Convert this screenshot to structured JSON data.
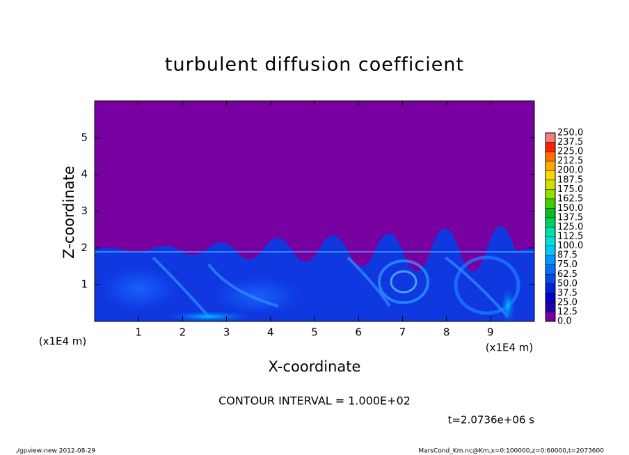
{
  "chart_data": {
    "type": "contour",
    "title": "turbulent diffusion coefficient",
    "x_label": "X-coordinate",
    "y_label": "Z-coordinate",
    "x_unit": "(x1E4 m)",
    "y_unit": "(x1E4 m)",
    "xlim": [
      0,
      10
    ],
    "ylim": [
      0,
      6
    ],
    "xticks": [
      1,
      2,
      3,
      4,
      5,
      6,
      7,
      8,
      9
    ],
    "yticks": [
      1,
      2,
      3,
      4,
      5
    ],
    "contour_interval": "CONTOUR INTERVAL = 1.000E+02",
    "time": "t=2.0736e+06 s",
    "colorbar": {
      "ticks": [
        {
          "value": 0,
          "label": "0.0"
        },
        {
          "value": 12.5,
          "label": "12.5"
        },
        {
          "value": 25,
          "label": "25.0"
        },
        {
          "value": 37.5,
          "label": "37.5"
        },
        {
          "value": 50,
          "label": "50.0"
        },
        {
          "value": 62.5,
          "label": "62.5"
        },
        {
          "value": 75,
          "label": "75.0"
        },
        {
          "value": 87.5,
          "label": "87.5"
        },
        {
          "value": 100,
          "label": "100.0"
        },
        {
          "value": 112.5,
          "label": "112.5"
        },
        {
          "value": 125,
          "label": "125.0"
        },
        {
          "value": 137.5,
          "label": "137.5"
        },
        {
          "value": 150,
          "label": "150.0"
        },
        {
          "value": 162.5,
          "label": "162.5"
        },
        {
          "value": 175,
          "label": "175.0"
        },
        {
          "value": 187.5,
          "label": "187.5"
        },
        {
          "value": 200,
          "label": "200.0"
        },
        {
          "value": 212.5,
          "label": "212.5"
        },
        {
          "value": 225,
          "label": "225.0"
        },
        {
          "value": 237.5,
          "label": "237.5"
        },
        {
          "value": 250,
          "label": "250.0"
        }
      ],
      "colors": [
        "#7800a0",
        "#2000b0",
        "#0000c8",
        "#0020e0",
        "#0048f0",
        "#0070ff",
        "#0098ff",
        "#00c8ff",
        "#00e0d8",
        "#00e0a0",
        "#00d060",
        "#00c020",
        "#40d000",
        "#90e000",
        "#d0e000",
        "#f8d800",
        "#ffa800",
        "#ff7000",
        "#ff2000",
        "#f08080"
      ]
    },
    "footer_left": "./gpview-new  2012-08-29",
    "footer_right": "MarsCond_Km.nc@Km,x=0:100000,z=0:60000,t=2073600"
  }
}
